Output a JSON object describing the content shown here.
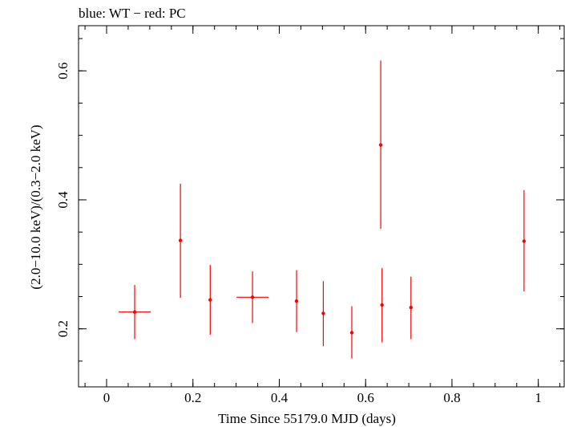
{
  "chart_data": {
    "type": "scatter",
    "title": "blue: WT − red: PC",
    "xlabel": "Time Since 55179.0 MJD (days)",
    "ylabel": "(2.0−10.0 keV)/(0.3−2.0 keV)",
    "xlim": [
      -0.065,
      1.06
    ],
    "ylim": [
      0.11,
      0.67
    ],
    "x_ticks": [
      {
        "value": 0,
        "label": "0"
      },
      {
        "value": 0.2,
        "label": "0.2"
      },
      {
        "value": 0.4,
        "label": "0.4"
      },
      {
        "value": 0.6,
        "label": "0.6"
      },
      {
        "value": 0.8,
        "label": "0.8"
      },
      {
        "value": 1.0,
        "label": "1"
      }
    ],
    "x_minor_step": 0.05,
    "y_ticks": [
      {
        "value": 0.2,
        "label": "0.2"
      },
      {
        "value": 0.4,
        "label": "0.4"
      },
      {
        "value": 0.6,
        "label": "0.6"
      }
    ],
    "y_minor_step": 0.05,
    "colors": {
      "PC": "#ff0000",
      "WT": "#0000ff",
      "axis": "#000000"
    },
    "series": [
      {
        "name": "PC",
        "color": "#ff0000",
        "points": [
          {
            "x": 0.065,
            "xerr": 0.037,
            "y": 0.226,
            "ylo": 0.184,
            "yhi": 0.268
          },
          {
            "x": 0.171,
            "xerr": 0.003,
            "y": 0.337,
            "ylo": 0.248,
            "yhi": 0.425
          },
          {
            "x": 0.24,
            "xerr": 0,
            "y": 0.245,
            "ylo": 0.191,
            "yhi": 0.299
          },
          {
            "x": 0.338,
            "xerr": 0.037,
            "y": 0.249,
            "ylo": 0.209,
            "yhi": 0.289
          },
          {
            "x": 0.44,
            "xerr": 0,
            "y": 0.243,
            "ylo": 0.195,
            "yhi": 0.291
          },
          {
            "x": 0.502,
            "xerr": 0,
            "y": 0.224,
            "ylo": 0.173,
            "yhi": 0.274
          },
          {
            "x": 0.568,
            "xerr": 0,
            "y": 0.194,
            "ylo": 0.154,
            "yhi": 0.235
          },
          {
            "x": 0.635,
            "xerr": 0,
            "y": 0.485,
            "ylo": 0.355,
            "yhi": 0.616
          },
          {
            "x": 0.638,
            "xerr": 0,
            "y": 0.237,
            "ylo": 0.179,
            "yhi": 0.294
          },
          {
            "x": 0.705,
            "xerr": 0,
            "y": 0.233,
            "ylo": 0.184,
            "yhi": 0.281
          },
          {
            "x": 0.967,
            "xerr": 0,
            "y": 0.336,
            "ylo": 0.258,
            "yhi": 0.415
          }
        ]
      }
    ]
  }
}
